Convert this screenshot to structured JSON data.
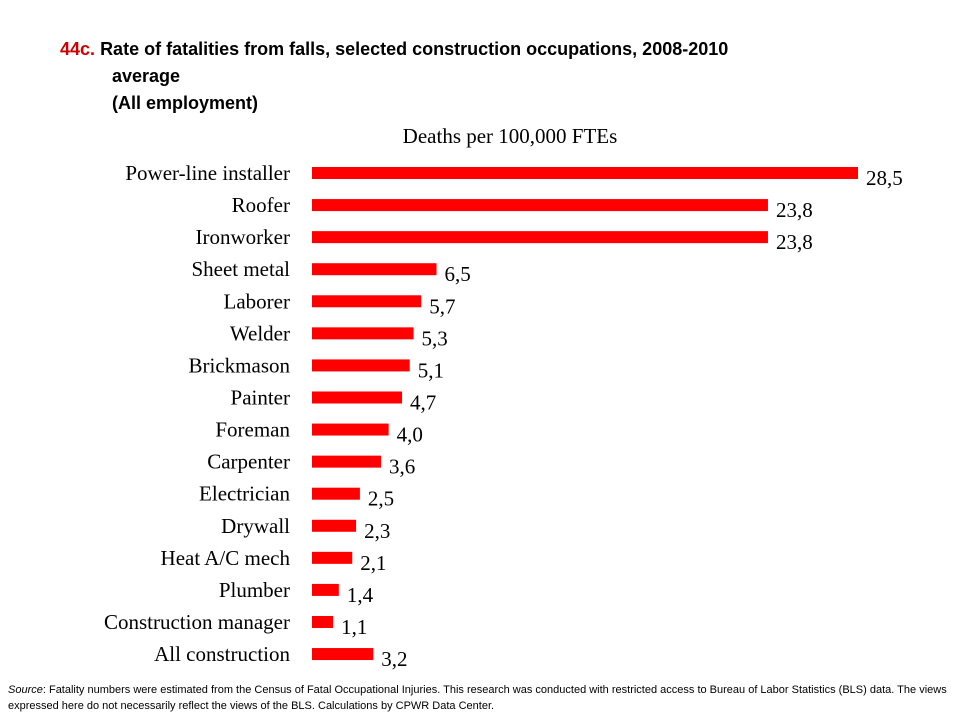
{
  "title": {
    "number": "44c.",
    "line1": "Rate of fatalities from falls, selected construction occupations, 2008-2010",
    "line2": "average",
    "line3": "(All employment)"
  },
  "source": {
    "label": "Source",
    "text": ": Fatality numbers were estimated from the Census of Fatal Occupational Injuries. This research was conducted with restricted access to Bureau of Labor Statistics (BLS) data. The views expressed here do not necessarily reflect the views of the BLS. Calculations by CPWR Data Center."
  },
  "chart_data": {
    "type": "bar",
    "orientation": "horizontal",
    "title": "Deaths per 100,000 FTEs",
    "categories": [
      "Power-line installer",
      "Roofer",
      "Ironworker",
      "Sheet metal",
      "Laborer",
      "Welder",
      "Brickmason",
      "Painter",
      "Foreman",
      "Carpenter",
      "Electrician",
      "Drywall",
      "Heat A/C mech",
      "Plumber",
      "Construction manager",
      "All construction"
    ],
    "values": [
      28.5,
      23.8,
      23.8,
      6.5,
      5.7,
      5.3,
      5.1,
      4.7,
      4.0,
      3.6,
      2.5,
      2.3,
      2.1,
      1.4,
      1.1,
      3.2
    ],
    "data_labels": [
      "28,5",
      "23,8",
      "23,8",
      "6,5",
      "5,7",
      "5,3",
      "5,1",
      "4,7",
      "4,0",
      "3,6",
      "2,5",
      "2,3",
      "2,1",
      "1,4",
      "1,1",
      "3,2"
    ],
    "xlim": [
      0,
      28.5
    ],
    "bar_color": "#ff0000",
    "grid": false,
    "legend": "none"
  }
}
